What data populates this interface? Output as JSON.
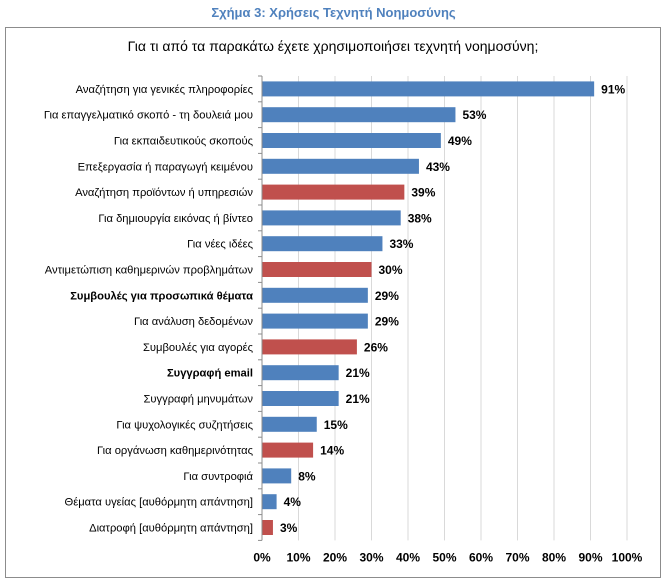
{
  "caption": "Σχήμα 3: Χρήσεις Τεχνητή Νοημοσύνης",
  "chart_data": {
    "type": "bar",
    "orientation": "horizontal",
    "title": "Για τι από τα παρακάτω έχετε χρησιμοποιήσει τεχνητή νοημοσύνη;",
    "xlabel": "",
    "ylabel": "",
    "xlim": [
      0,
      100
    ],
    "grid": true,
    "value_suffix": "%",
    "categories": [
      "Αναζήτηση για γενικές πληροφορίες",
      "Για επαγγελματικό σκοπό - τη δουλειά μου",
      "Για εκπαιδευτικούς σκοπούς",
      "Επεξεργασία ή παραγωγή κειμένου",
      "Αναζήτηση προϊόντων ή υπηρεσιών",
      "Για δημιουργία εικόνας ή βίντεο",
      "Για νέες ιδέες",
      "Αντιμετώπιση καθημερινών προβλημάτων",
      "Συμβουλές για προσωπικά θέματα",
      "Για ανάλυση δεδομένων",
      "Συμβουλές για αγορές",
      "Συγγραφή email",
      "Συγγραφή μηνυμάτων",
      "Για ψυχολογικές συζητήσεις",
      "Για οργάνωση καθημερινότητας",
      "Για συντροφιά",
      "Θέματα υγείας [αυθόρμητη απάντηση]",
      "Διατροφή [αυθόρμητη απάντηση]"
    ],
    "values": [
      91,
      53,
      49,
      43,
      39,
      38,
      33,
      30,
      29,
      29,
      26,
      21,
      21,
      15,
      14,
      8,
      4,
      3
    ],
    "highlighted": [
      false,
      false,
      false,
      false,
      true,
      false,
      false,
      true,
      false,
      false,
      true,
      false,
      false,
      false,
      true,
      false,
      false,
      true
    ],
    "bold_labels": [
      false,
      false,
      false,
      false,
      false,
      false,
      false,
      false,
      true,
      false,
      false,
      true,
      false,
      false,
      false,
      false,
      false,
      false
    ],
    "x_ticks": [
      "0%",
      "10%",
      "20%",
      "30%",
      "40%",
      "50%",
      "60%",
      "70%",
      "80%",
      "90%",
      "100%"
    ],
    "colors": {
      "default": "#4f81bd",
      "highlight": "#c0504d",
      "grid": "#d9d9d9",
      "axis": "#8c8c8c"
    }
  }
}
